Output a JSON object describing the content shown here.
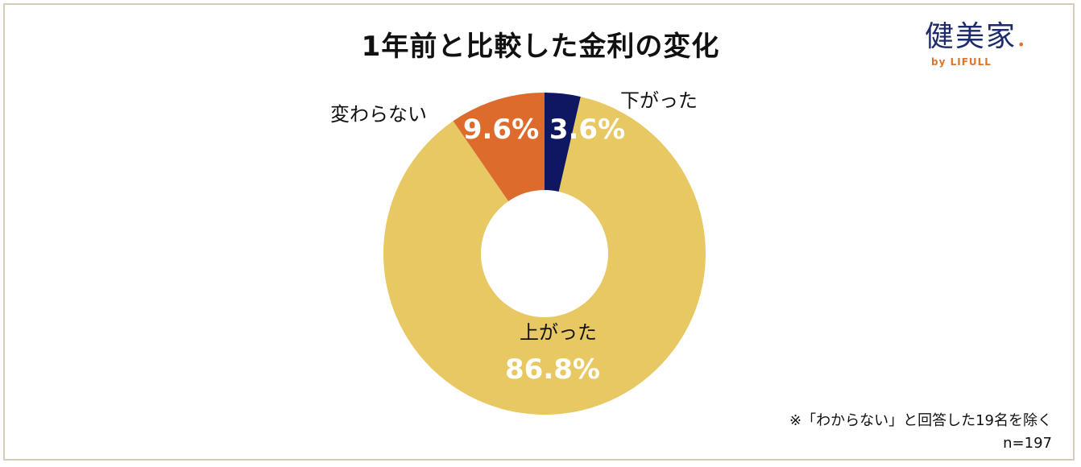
{
  "title": "1年前と比較した金利の変化",
  "logo": {
    "text": "健美家",
    "dot": ".",
    "sub": "by LIFULL",
    "color": "#1d2a6b",
    "accent": "#e0742d"
  },
  "note": "※「わからない」と回答した19名を除く",
  "sample": "n=197",
  "chart_data": {
    "type": "pie",
    "variant": "donut",
    "start": "top, clockwise",
    "categories": [
      "下がった",
      "上がった",
      "変わらない"
    ],
    "values": [
      3.6,
      86.8,
      9.6
    ],
    "value_labels": [
      "3.6%",
      "86.8%",
      "9.6%"
    ],
    "colors": [
      "#0f1763",
      "#e8c862",
      "#dd6b2c"
    ],
    "unit": "%"
  }
}
